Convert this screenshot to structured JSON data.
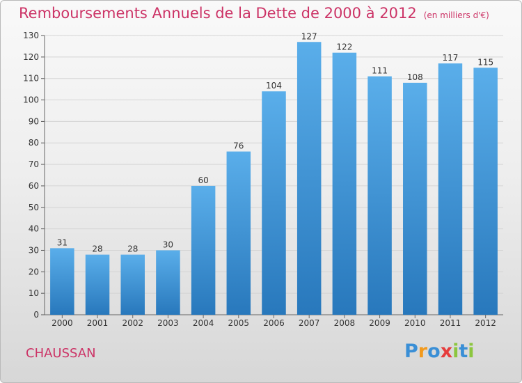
{
  "title": "Remboursements Annuels de la Dette de 2000 à 2012",
  "unit_label": "(en milliers d'€)",
  "commune": "CHAUSSAN",
  "logo": {
    "text": "Proxiti",
    "letters": [
      {
        "ch": "P",
        "color": "#3a8fd6"
      },
      {
        "ch": "r",
        "color": "#f29a1d"
      },
      {
        "ch": "o",
        "color": "#3a8fd6"
      },
      {
        "ch": "x",
        "color": "#e63c3c"
      },
      {
        "ch": "i",
        "color": "#8cc63f"
      },
      {
        "ch": "t",
        "color": "#3a8fd6"
      },
      {
        "ch": "i",
        "color": "#8cc63f"
      }
    ]
  },
  "colors": {
    "bar_top": "#5aaeea",
    "bar_bottom": "#2878bc",
    "title": "#cc3366",
    "grid": "#d4d4d4"
  },
  "chart_data": {
    "type": "bar",
    "categories": [
      "2000",
      "2001",
      "2002",
      "2003",
      "2004",
      "2005",
      "2006",
      "2007",
      "2008",
      "2009",
      "2010",
      "2011",
      "2012"
    ],
    "values": [
      31,
      28,
      28,
      30,
      60,
      76,
      104,
      127,
      122,
      111,
      108,
      117,
      115
    ],
    "ylim": [
      0,
      130
    ],
    "yticks": [
      0,
      10,
      20,
      30,
      40,
      50,
      60,
      70,
      80,
      90,
      100,
      110,
      120,
      130
    ],
    "grid": true,
    "data_labels": true
  }
}
